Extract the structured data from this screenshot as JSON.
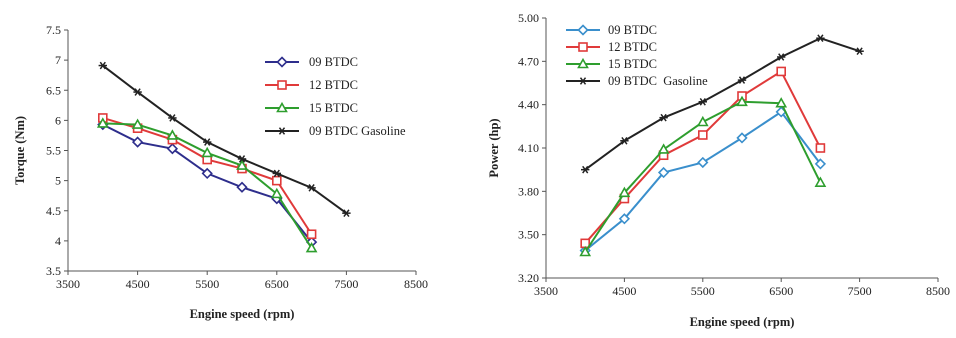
{
  "chart_data": [
    {
      "type": "line",
      "xlabel": "Engine speed (rpm)",
      "ylabel": "Torque (Nm)",
      "xlim": [
        3500,
        8500
      ],
      "ylim": [
        3.5,
        7.5
      ],
      "x_ticks": [
        "3500",
        "4500",
        "5500",
        "6500",
        "7500",
        "8500"
      ],
      "y_ticks": [
        "3.5",
        "4",
        "4.5",
        "5",
        "5.5",
        "6",
        "6.5",
        "7",
        "7.5"
      ],
      "legend_position": "center-right",
      "series": [
        {
          "name": "09 BTDC",
          "color": "#2e2e8c",
          "marker": "diamond",
          "x": [
            4000,
            4500,
            5000,
            5500,
            6000,
            6500,
            7000
          ],
          "y": [
            5.93,
            5.64,
            5.53,
            5.12,
            4.89,
            4.7,
            3.98
          ]
        },
        {
          "name": "12 BTDC",
          "color": "#e03a3a",
          "marker": "square",
          "x": [
            4000,
            4500,
            5000,
            5500,
            6000,
            6500,
            7000
          ],
          "y": [
            6.04,
            5.87,
            5.68,
            5.35,
            5.2,
            5.0,
            4.11
          ]
        },
        {
          "name": "15 BTDC",
          "color": "#2e9e2e",
          "marker": "triangle",
          "x": [
            4000,
            4500,
            5000,
            5500,
            6000,
            6500,
            7000
          ],
          "y": [
            5.95,
            5.93,
            5.75,
            5.46,
            5.25,
            4.78,
            3.88
          ]
        },
        {
          "name": "09 BTDC Gasoline",
          "color": "#222222",
          "marker": "asterisk",
          "x": [
            4000,
            4500,
            5000,
            5500,
            6000,
            6500,
            7000,
            7500
          ],
          "y": [
            6.91,
            6.47,
            6.04,
            5.64,
            5.36,
            5.12,
            4.88,
            4.46
          ]
        }
      ]
    },
    {
      "type": "line",
      "xlabel": "Engine speed (rpm)",
      "ylabel": "Power (hp)",
      "xlim": [
        3500,
        8500
      ],
      "ylim": [
        3.2,
        5.0
      ],
      "x_ticks": [
        "3500",
        "4500",
        "5500",
        "6500",
        "7500",
        "8500"
      ],
      "y_ticks": [
        "3.20",
        "3.50",
        "3.80",
        "4.10",
        "4.40",
        "4.70",
        "5.00"
      ],
      "legend_position": "top-left",
      "series": [
        {
          "name": "09 BTDC",
          "color": "#3a8fcc",
          "marker": "diamond",
          "x": [
            4000,
            4500,
            5000,
            5500,
            6000,
            6500,
            7000
          ],
          "y": [
            3.39,
            3.61,
            3.93,
            4.0,
            4.17,
            4.35,
            3.99
          ]
        },
        {
          "name": "12 BTDC",
          "color": "#e03a3a",
          "marker": "square",
          "x": [
            4000,
            4500,
            5000,
            5500,
            6000,
            6500,
            7000
          ],
          "y": [
            3.44,
            3.75,
            4.05,
            4.19,
            4.46,
            4.63,
            4.1
          ]
        },
        {
          "name": "15 BTDC",
          "color": "#2e9e2e",
          "marker": "triangle",
          "x": [
            4000,
            4500,
            5000,
            5500,
            6000,
            6500,
            7000
          ],
          "y": [
            3.38,
            3.79,
            4.09,
            4.28,
            4.42,
            4.41,
            3.86
          ]
        },
        {
          "name": "09 BTDC  Gasoline",
          "color": "#222222",
          "marker": "asterisk",
          "x": [
            4000,
            4500,
            5000,
            5500,
            6000,
            6500,
            7000,
            7500
          ],
          "y": [
            3.95,
            4.15,
            4.31,
            4.42,
            4.57,
            4.73,
            4.86,
            4.77
          ]
        }
      ]
    }
  ]
}
